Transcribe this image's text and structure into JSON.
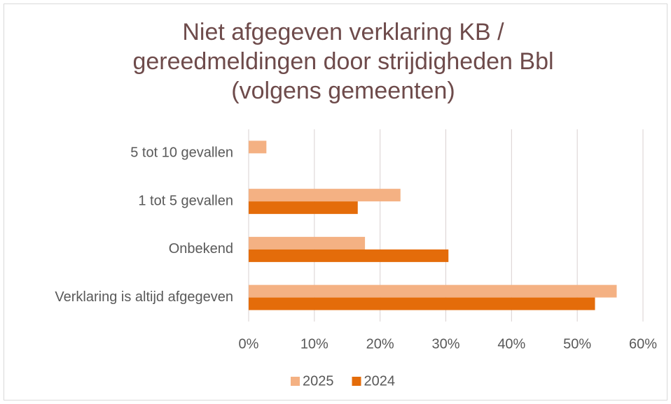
{
  "chart_data": {
    "type": "bar",
    "orientation": "horizontal",
    "title": [
      "Niet afgegeven verklaring KB /",
      "gereedmeldingen door strijdigheden Bbl",
      "(volgens gemeenten)"
    ],
    "categories": [
      "5 tot 10 gevallen",
      "1 tot 5 gevallen",
      "Onbekend",
      "Verklaring is altijd afgegeven"
    ],
    "series": [
      {
        "name": "2025",
        "color": "#f4b183",
        "values": [
          2.7,
          23.1,
          17.7,
          56.0
        ]
      },
      {
        "name": "2024",
        "color": "#e46c0a",
        "values": [
          null,
          16.6,
          30.4,
          52.7
        ]
      }
    ],
    "xlim": [
      0,
      60
    ],
    "xticks": [
      {
        "value": 0,
        "label": "0%"
      },
      {
        "value": 10,
        "label": "10%"
      },
      {
        "value": 20,
        "label": "20%"
      },
      {
        "value": 30,
        "label": "30%"
      },
      {
        "value": 40,
        "label": "40%"
      },
      {
        "value": 50,
        "label": "50%"
      },
      {
        "value": 60,
        "label": "60%"
      }
    ],
    "grid": true,
    "legend": "bottom"
  }
}
